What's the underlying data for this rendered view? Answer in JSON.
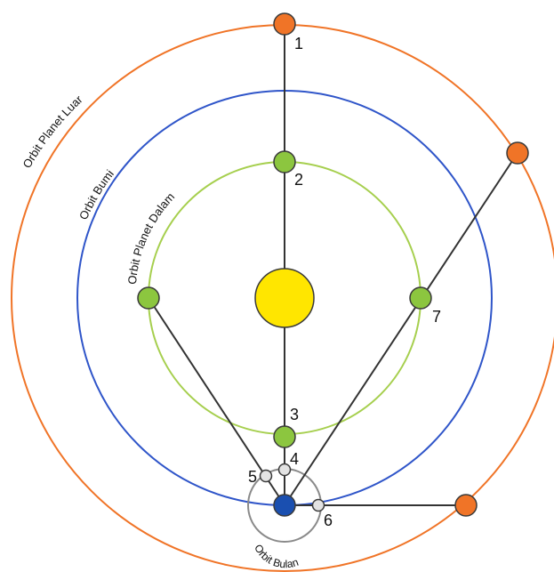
{
  "colors": {
    "outer_orbit": "#f07427",
    "earth_orbit": "#2f55c9",
    "inner_orbit": "#a6cf4e",
    "moon_orbit": "#8a8a8a",
    "outer_planet": "#f07427",
    "inner_planet": "#8cc63f",
    "earth": "#1a4fb0",
    "sun": "#ffe600",
    "moon": "#e3e3e3",
    "connector": "#333333"
  },
  "orbit_labels": {
    "outer": "Orbit Planet Luar",
    "earth": "Orbit Bumi",
    "inner": "Orbit Planet Dalam",
    "moon": "Orbit Bulan"
  },
  "positions": [
    "1",
    "2",
    "3",
    "4",
    "5",
    "6",
    "7"
  ]
}
